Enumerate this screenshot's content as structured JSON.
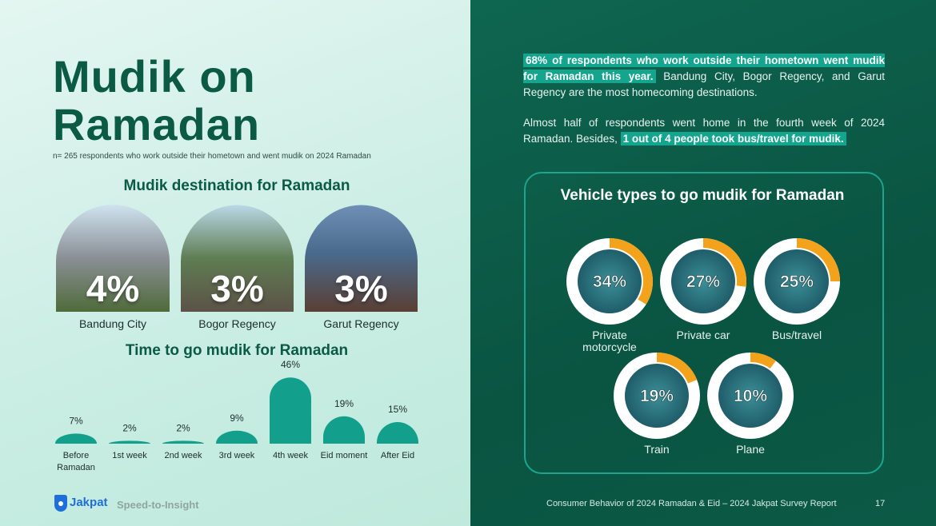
{
  "title": "Mudik on Ramadan",
  "subtitle": "n= 265 respondents who work outside their hometown and went mudik on 2024 Ramadan",
  "destinations": {
    "title": "Mudik destination for Ramadan",
    "items": [
      {
        "value": "4%",
        "label": "Bandung City"
      },
      {
        "value": "3%",
        "label": "Bogor Regency"
      },
      {
        "value": "3%",
        "label": "Garut Regency"
      }
    ]
  },
  "paragraphs": [
    {
      "highlight": "68% of respondents who work outside their hometown went mudik for Ramadan this year.",
      "text": "Bandung City, Bogor Regency, and Garut Regency are the most homecoming destinations."
    },
    {
      "text": "Almost half of respondents went home in the fourth week of 2024 Ramadan. Besides,",
      "highlight": "1 out of 4 people took bus/travel for mudik."
    }
  ],
  "chart_data": [
    {
      "type": "bar",
      "title": "Time to go mudik for Ramadan",
      "categories": [
        "Before Ramadan",
        "1st week",
        "2nd week",
        "3rd week",
        "4th week",
        "Eid moment",
        "After Eid"
      ],
      "values": [
        7,
        2,
        2,
        9,
        46,
        19,
        15
      ],
      "value_labels": [
        "7%",
        "2%",
        "2%",
        "9%",
        "46%",
        "19%",
        "15%"
      ],
      "color": "#12a08c"
    },
    {
      "type": "donut",
      "title": "Vehicle types to go mudik for Ramadan",
      "categories": [
        "Private motorcycle",
        "Private car",
        "Bus/travel",
        "Train",
        "Plane"
      ],
      "values": [
        34,
        27,
        25,
        19,
        10
      ],
      "value_labels": [
        "34%",
        "27%",
        "25%",
        "19%",
        "10%"
      ],
      "color": "#f3a31b"
    }
  ],
  "footer": {
    "brand": "Jakpat",
    "tagline": "Speed-to-Insight",
    "report": "Consumer Behavior of 2024 Ramadan & Eid – 2024 Jakpat Survey Report",
    "page": "17"
  }
}
